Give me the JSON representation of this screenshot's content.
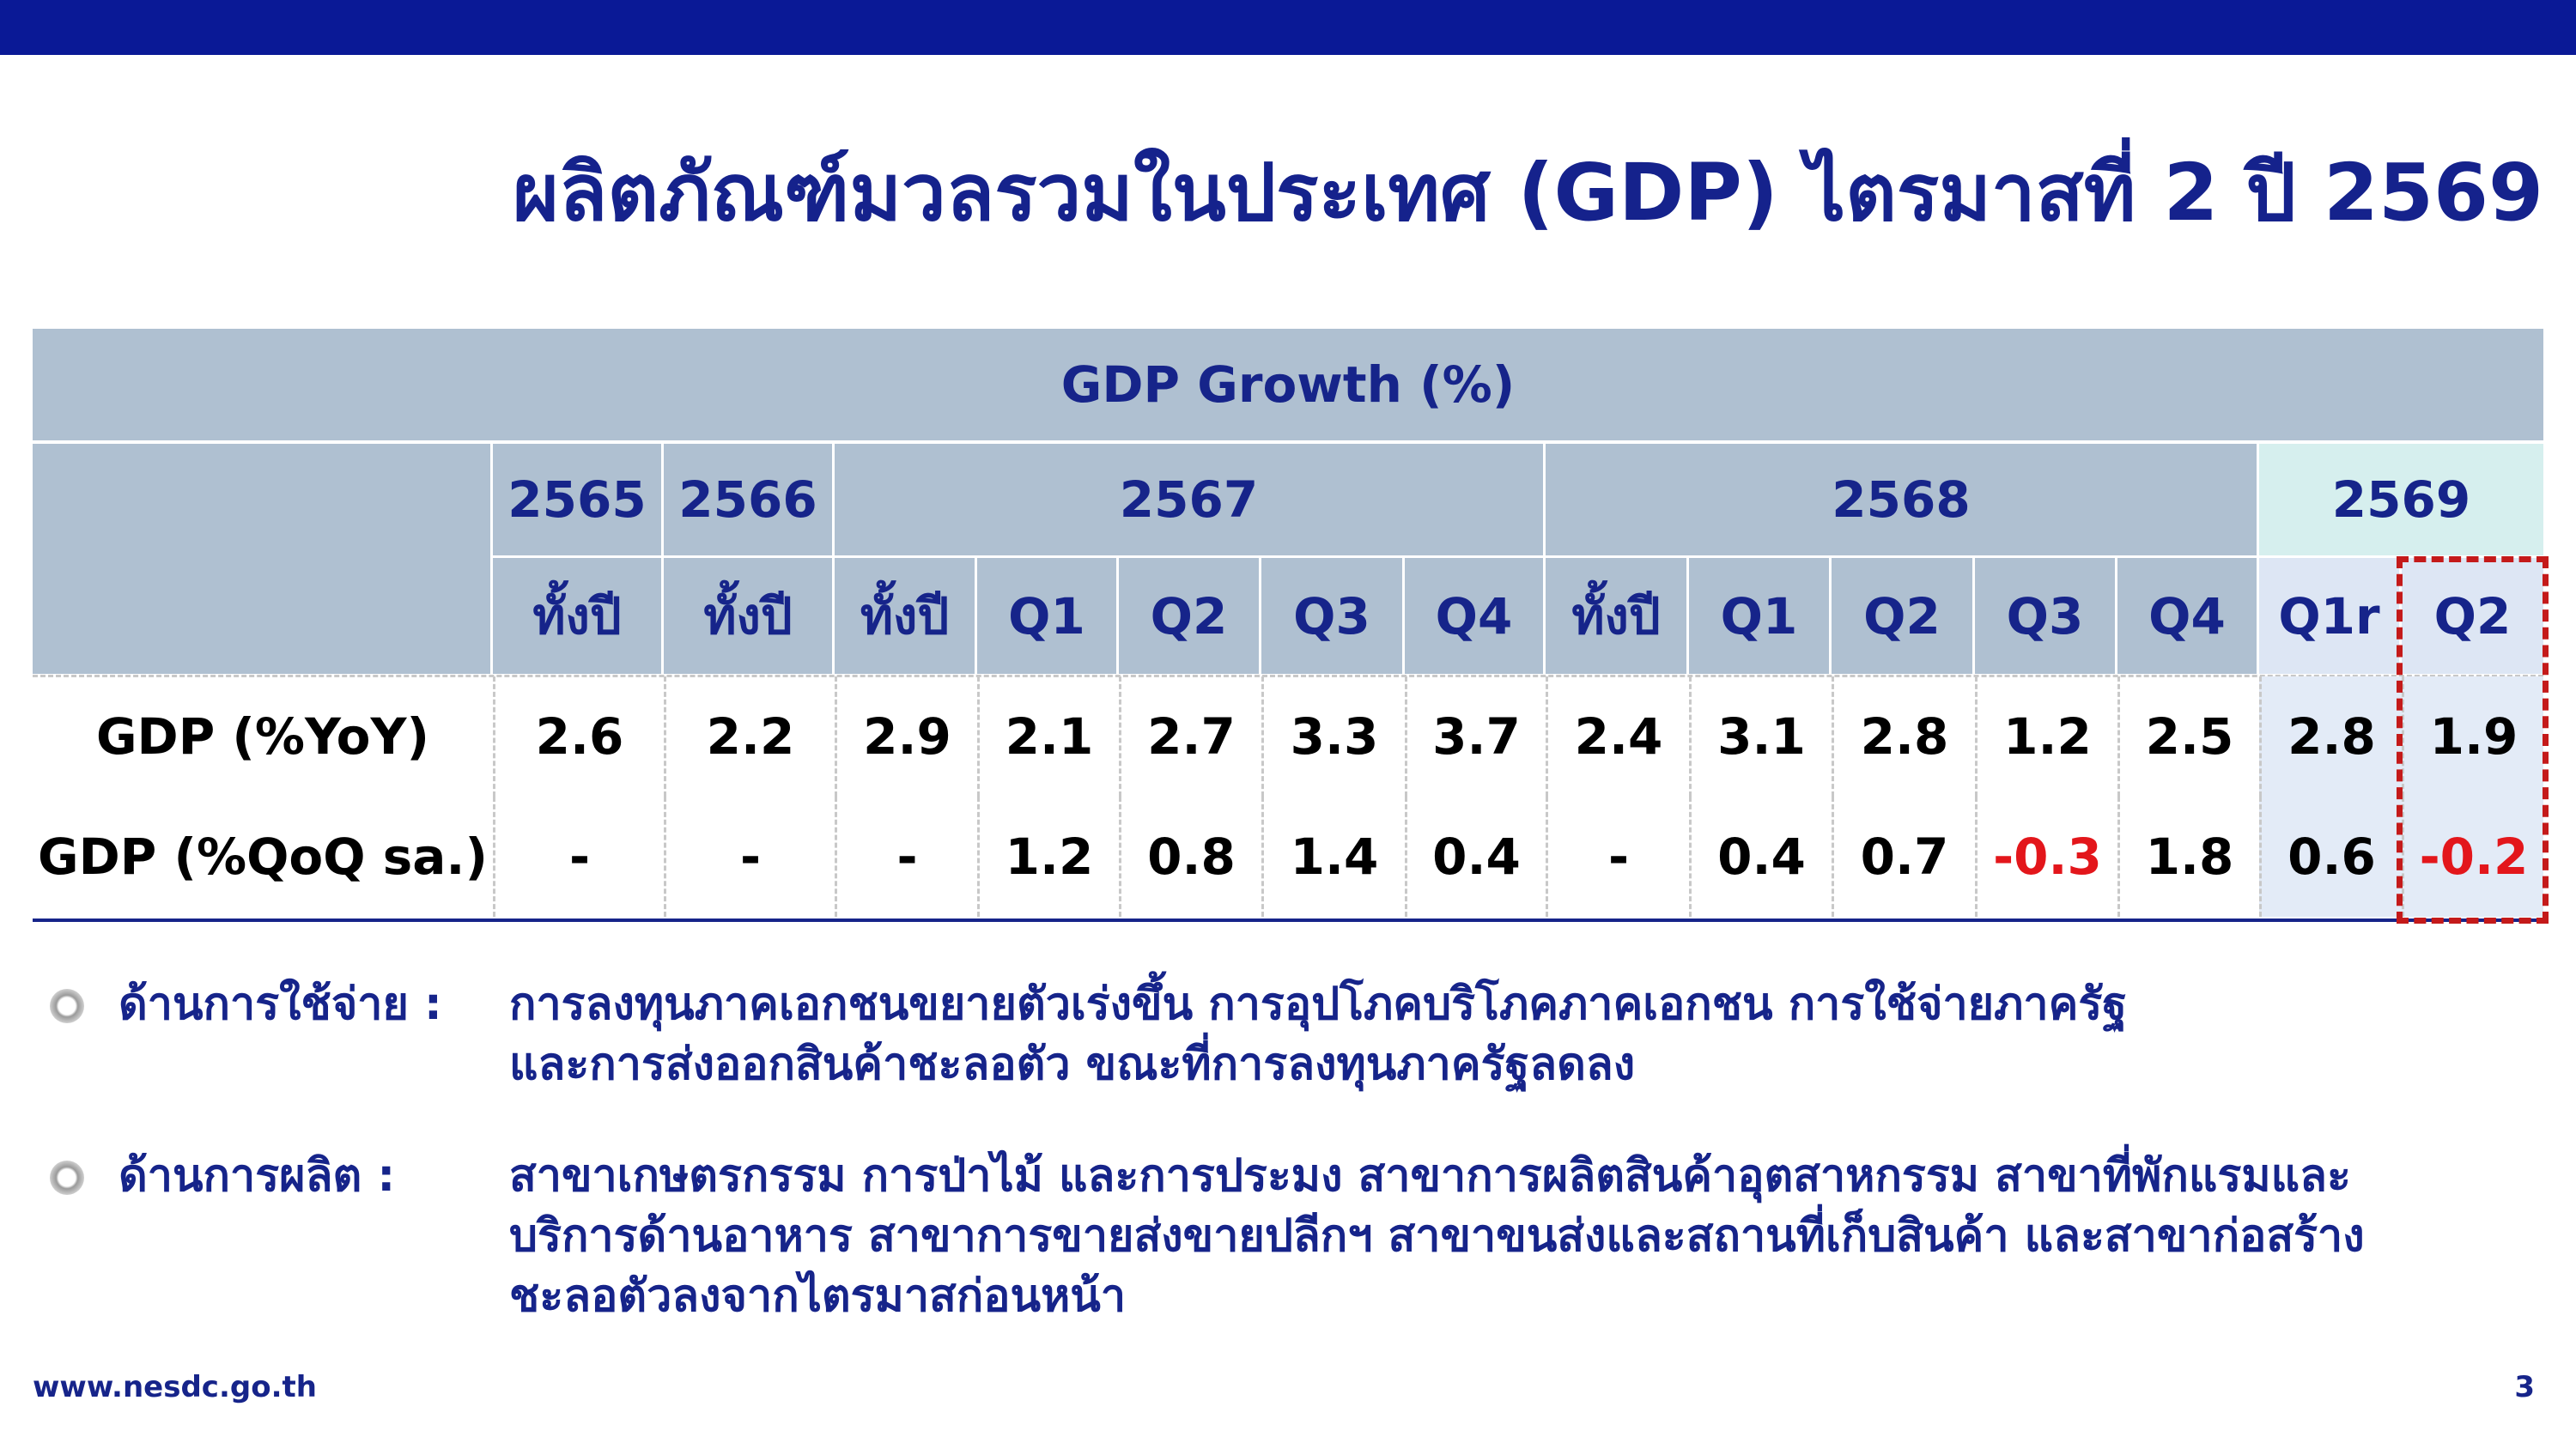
{
  "title": "ผลิตภัณฑ์มวลรวมในประเทศ (GDP) ไตรมาสที่ 2 ปี 2569",
  "table": {
    "caption": "GDP Growth (%)",
    "years": [
      "2565",
      "2566",
      "2567",
      "2568",
      "2569"
    ],
    "subheaders": [
      "ทั้งปี",
      "ทั้งปี",
      "ทั้งปี",
      "Q1",
      "Q2",
      "Q3",
      "Q4",
      "ทั้งปี",
      "Q1",
      "Q2",
      "Q3",
      "Q4",
      "Q1r",
      "Q2"
    ],
    "rows": [
      {
        "label": "GDP (%YoY)",
        "cells": [
          "2.6",
          "2.2",
          "2.9",
          "2.1",
          "2.7",
          "3.3",
          "3.7",
          "2.4",
          "3.1",
          "2.8",
          "1.2",
          "2.5",
          "2.8",
          "1.9"
        ]
      },
      {
        "label": "GDP (%QoQ sa.)",
        "cells": [
          "-",
          "-",
          "-",
          "1.2",
          "0.8",
          "1.4",
          "0.4",
          "-",
          "0.4",
          "0.7",
          "-0.3",
          "1.8",
          "0.6",
          "-0.2"
        ]
      }
    ]
  },
  "bullets": [
    {
      "label": "ด้านการใช้จ่าย :",
      "lines": [
        "การลงทุนภาคเอกชนขยายตัวเร่งขึ้น การอุปโภคบริโภคภาคเอกชน การใช้จ่ายภาครัฐ",
        "และการส่งออกสินค้าชะลอตัว ขณะที่การลงทุนภาครัฐลดลง"
      ]
    },
    {
      "label": "ด้านการผลิต :",
      "lines": [
        "สาขาเกษตรกรรม การป่าไม้ และการประมง สาขาการผลิตสินค้าอุตสาหกรรม สาขาที่พักแรมและ",
        "บริการด้านอาหาร สาขาการขายส่งขายปลีกฯ สาขาขนส่งและสถานที่เก็บสินค้า และสาขาก่อสร้าง",
        "ชะลอตัวลงจากไตรมาสก่อนหน้า"
      ]
    }
  ],
  "footer": {
    "url": "www.nesdc.go.th",
    "page": "3"
  }
}
